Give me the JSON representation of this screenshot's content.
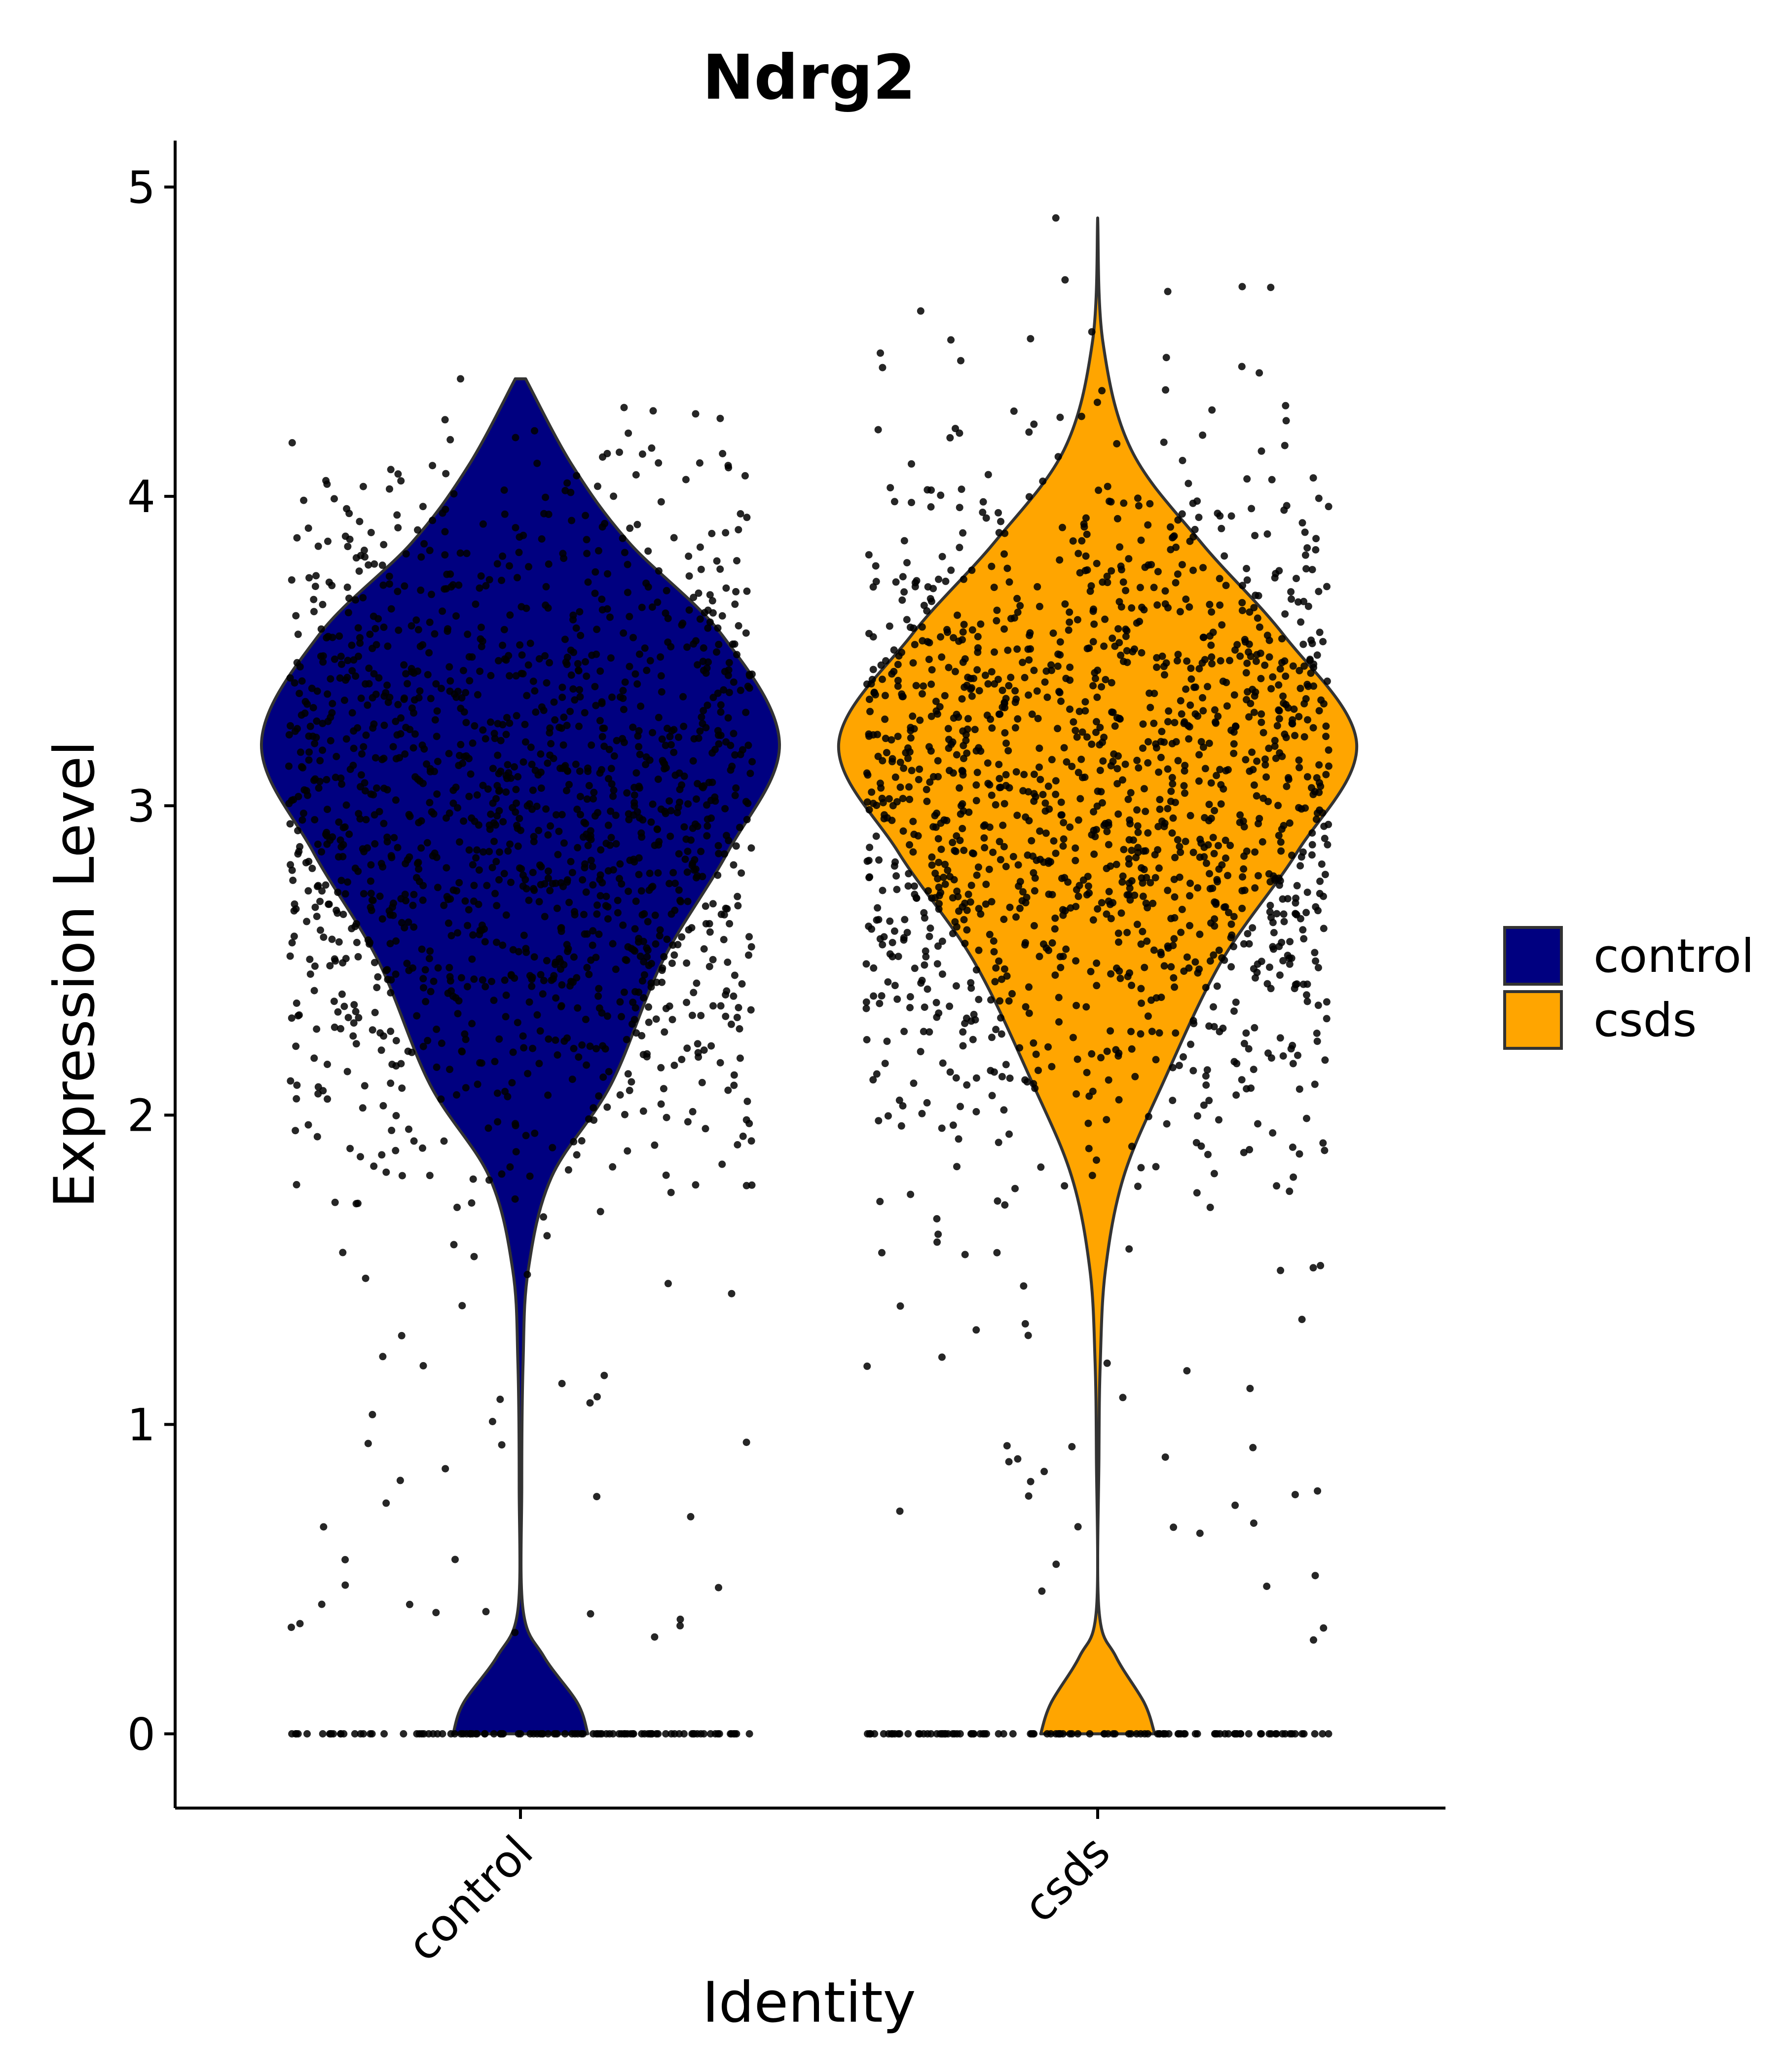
{
  "chart_data": {
    "type": "violin",
    "title": "Ndrg2",
    "xlabel": "Identity",
    "ylabel": "Expression Level",
    "categories": [
      "control",
      "csds"
    ],
    "ylim": [
      -0.24,
      5.15
    ],
    "yticks": [
      0,
      1,
      2,
      3,
      4,
      5
    ],
    "legend": {
      "position": "right",
      "entries": [
        {
          "label": "control",
          "color": "#000080"
        },
        {
          "label": "csds",
          "color": "#FFA500"
        }
      ]
    },
    "series": [
      {
        "name": "control",
        "color": "#000080",
        "max": 4.38,
        "median": 3.05,
        "zero_fraction": 0.12,
        "density_profile": [
          {
            "y": 0.0,
            "w": 0.26
          },
          {
            "y": 0.1,
            "w": 0.22
          },
          {
            "y": 0.25,
            "w": 0.09
          },
          {
            "y": 0.4,
            "w": 0.01
          },
          {
            "y": 0.8,
            "w": 0.005
          },
          {
            "y": 1.2,
            "w": 0.01
          },
          {
            "y": 1.5,
            "w": 0.03
          },
          {
            "y": 1.8,
            "w": 0.12
          },
          {
            "y": 2.1,
            "w": 0.35
          },
          {
            "y": 2.5,
            "w": 0.55
          },
          {
            "y": 2.85,
            "w": 0.8
          },
          {
            "y": 3.2,
            "w": 1.0
          },
          {
            "y": 3.55,
            "w": 0.78
          },
          {
            "y": 3.85,
            "w": 0.42
          },
          {
            "y": 4.1,
            "w": 0.2
          },
          {
            "y": 4.38,
            "w": 0.02
          }
        ]
      },
      {
        "name": "csds",
        "color": "#FFA500",
        "max": 4.9,
        "median": 3.1,
        "zero_fraction": 0.1,
        "density_profile": [
          {
            "y": 0.0,
            "w": 0.22
          },
          {
            "y": 0.1,
            "w": 0.18
          },
          {
            "y": 0.25,
            "w": 0.07
          },
          {
            "y": 0.4,
            "w": 0.005
          },
          {
            "y": 0.9,
            "w": 0.005
          },
          {
            "y": 1.2,
            "w": 0.01
          },
          {
            "y": 1.5,
            "w": 0.03
          },
          {
            "y": 1.8,
            "w": 0.1
          },
          {
            "y": 2.1,
            "w": 0.25
          },
          {
            "y": 2.5,
            "w": 0.48
          },
          {
            "y": 2.85,
            "w": 0.77
          },
          {
            "y": 3.2,
            "w": 1.0
          },
          {
            "y": 3.55,
            "w": 0.72
          },
          {
            "y": 3.85,
            "w": 0.4
          },
          {
            "y": 4.15,
            "w": 0.13
          },
          {
            "y": 4.5,
            "w": 0.02
          },
          {
            "y": 4.9,
            "w": 0.0
          }
        ]
      }
    ]
  }
}
